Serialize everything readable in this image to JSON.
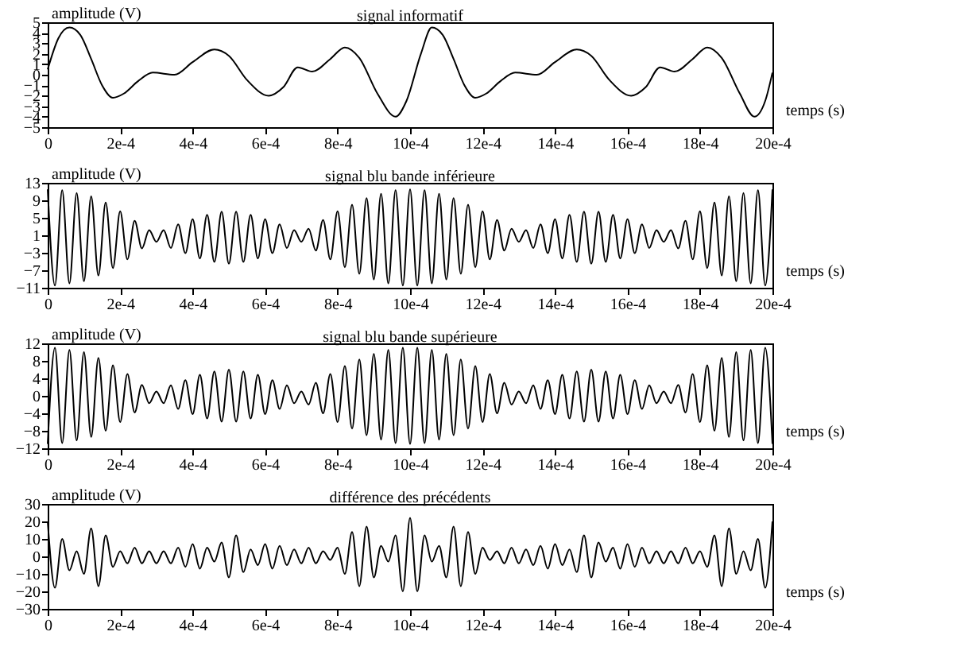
{
  "chart_data": [
    {
      "type": "line",
      "title": "signal informatif",
      "ylabel": "amplitude (V)",
      "xlabel": "temps (s)",
      "color": "#000000",
      "x": [
        0,
        3e-05,
        6e-05,
        9e-05,
        0.00012,
        0.00015,
        0.00018,
        0.00021,
        0.00025,
        0.00029,
        0.00035,
        0.0004,
        0.00046,
        0.0005,
        0.00055,
        0.00061,
        0.00065,
        0.00069,
        0.00073,
        0.00078,
        0.00082,
        0.00086,
        0.00091,
        0.00096,
        0.00099,
        0.00103,
        0.00106,
        0.00109,
        0.00112,
        0.00115,
        0.00118,
        0.00121,
        0.00125,
        0.00129,
        0.00135,
        0.0014,
        0.00146,
        0.0015,
        0.00155,
        0.00161,
        0.00165,
        0.00169,
        0.00173,
        0.00178,
        0.00182,
        0.00186,
        0.00191,
        0.00195,
        0.00198,
        0.002
      ],
      "values": [
        0.5,
        3.5,
        4.5,
        3.8,
        1.5,
        -1,
        -2.2,
        -1.8,
        -0.6,
        0.2,
        0,
        1.2,
        2.4,
        1.8,
        -0.5,
        -2,
        -1.2,
        0.7,
        0.3,
        1.5,
        2.6,
        1.6,
        -1.8,
        -4,
        -2.5,
        2,
        4.5,
        3.8,
        1.5,
        -1,
        -2.2,
        -1.8,
        -0.6,
        0.2,
        0,
        1.2,
        2.4,
        1.8,
        -0.5,
        -2,
        -1.2,
        0.7,
        0.3,
        1.5,
        2.6,
        1.6,
        -1.8,
        -4,
        -2.5,
        0.2
      ],
      "xlim": [
        0,
        0.002
      ],
      "xticks": [
        {
          "value": 0,
          "label": "0"
        },
        {
          "value": 0.0002,
          "label": "2e-4"
        },
        {
          "value": 0.0004,
          "label": "4e-4"
        },
        {
          "value": 0.0006,
          "label": "6e-4"
        },
        {
          "value": 0.0008,
          "label": "8e-4"
        },
        {
          "value": 0.001,
          "label": "10e-4"
        },
        {
          "value": 0.0012,
          "label": "12e-4"
        },
        {
          "value": 0.0014,
          "label": "14e-4"
        },
        {
          "value": 0.0016,
          "label": "16e-4"
        },
        {
          "value": 0.0018,
          "label": "18e-4"
        },
        {
          "value": 0.002,
          "label": "20e-4"
        }
      ],
      "ylim": [
        -5,
        5
      ],
      "yticks": [
        -5,
        -4,
        -3,
        -2,
        -1,
        0,
        1,
        2,
        3,
        4,
        5
      ]
    },
    {
      "type": "line",
      "title": "signal blu bande inférieure",
      "ylabel": "amplitude (V)",
      "xlabel": "temps (s)",
      "color": "#000000",
      "x": [
        0,
        2e-05,
        4e-05,
        6e-05,
        8e-05,
        0.0001,
        0.00012,
        0.00014,
        0.00016,
        0.00018,
        0.0002,
        0.00022,
        0.00024,
        0.00026,
        0.00028,
        0.0003,
        0.00032,
        0.00034,
        0.00036,
        0.00038,
        0.0004,
        0.00042,
        0.00044,
        0.00046,
        0.00048,
        0.0005,
        0.00052,
        0.00054,
        0.00056,
        0.00058,
        0.0006,
        0.00062,
        0.00064,
        0.00066,
        0.00068,
        0.0007,
        0.00072,
        0.00074,
        0.00076,
        0.00078,
        0.0008,
        0.00082,
        0.00084,
        0.00086,
        0.00088,
        0.0009,
        0.00092,
        0.00094,
        0.00096,
        0.00098,
        0.001,
        0.00102,
        0.00104,
        0.00106,
        0.00108,
        0.0011,
        0.00112,
        0.00114,
        0.00116,
        0.00118,
        0.0012,
        0.00122,
        0.00124,
        0.00126,
        0.00128,
        0.0013,
        0.00132,
        0.00134,
        0.00136,
        0.00138,
        0.0014,
        0.00142,
        0.00144,
        0.00146,
        0.00148,
        0.0015,
        0.00152,
        0.00154,
        0.00156,
        0.00158,
        0.0016,
        0.00162,
        0.00164,
        0.00166,
        0.00168,
        0.0017,
        0.00172,
        0.00174,
        0.00176,
        0.00178,
        0.0018,
        0.00182,
        0.00184,
        0.00186,
        0.00188,
        0.0019,
        0.00192,
        0.00194,
        0.00196,
        0.00198,
        0.002
      ],
      "values": [
        11.5,
        -10.5,
        11.3,
        -10,
        10.7,
        -9.5,
        9.9,
        -8.2,
        8.5,
        -6.5,
        6.5,
        -4.5,
        4.3,
        -2,
        2.2,
        -0.5,
        2.2,
        -1.9,
        3.5,
        -3.1,
        4.7,
        -4.3,
        5.7,
        -5.1,
        6.4,
        -5.5,
        6.4,
        -5.1,
        5.7,
        -4.3,
        4.7,
        -3.1,
        3.5,
        -1.9,
        2.2,
        -0.5,
        2.5,
        -2.5,
        4.5,
        -4.5,
        6.5,
        -6.3,
        8,
        -7.8,
        9.5,
        -9.1,
        10.5,
        -10,
        11.3,
        -10.5,
        11.5,
        -10.5,
        11.3,
        -10,
        10.5,
        -9.1,
        9.5,
        -7.8,
        8,
        -6.3,
        6.5,
        -4.5,
        4.5,
        -2.5,
        2.5,
        -0.5,
        2.2,
        -1.9,
        3.5,
        -3.1,
        4.7,
        -4.3,
        5.7,
        -5.1,
        6.4,
        -5.5,
        6.4,
        -5.1,
        5.7,
        -4.3,
        4.7,
        -3.1,
        3.5,
        -1.9,
        2.2,
        -0.5,
        2.2,
        -2,
        4.3,
        -4.5,
        6.5,
        -6.5,
        8.5,
        -8.2,
        9.9,
        -9.5,
        10.7,
        -10,
        11.3,
        -10.5,
        11.5
      ],
      "xlim": [
        0,
        0.002
      ],
      "xticks": [
        {
          "value": 0,
          "label": "0"
        },
        {
          "value": 0.0002,
          "label": "2e-4"
        },
        {
          "value": 0.0004,
          "label": "4e-4"
        },
        {
          "value": 0.0006,
          "label": "6e-4"
        },
        {
          "value": 0.0008,
          "label": "8e-4"
        },
        {
          "value": 0.001,
          "label": "10e-4"
        },
        {
          "value": 0.0012,
          "label": "12e-4"
        },
        {
          "value": 0.0014,
          "label": "14e-4"
        },
        {
          "value": 0.0016,
          "label": "16e-4"
        },
        {
          "value": 0.0018,
          "label": "18e-4"
        },
        {
          "value": 0.002,
          "label": "20e-4"
        }
      ],
      "ylim": [
        -11,
        13
      ],
      "yticks": [
        -11,
        -7,
        -3,
        1,
        5,
        9,
        13
      ]
    },
    {
      "type": "line",
      "title": "signal blu bande supérieure",
      "ylabel": "amplitude (V)",
      "xlabel": "temps (s)",
      "color": "#000000",
      "x": [
        0,
        2e-05,
        4e-05,
        6e-05,
        8e-05,
        0.0001,
        0.00012,
        0.00014,
        0.00016,
        0.00018,
        0.0002,
        0.00022,
        0.00024,
        0.00026,
        0.00028,
        0.0003,
        0.00032,
        0.00034,
        0.00036,
        0.00038,
        0.0004,
        0.00042,
        0.00044,
        0.00046,
        0.00048,
        0.0005,
        0.00052,
        0.00054,
        0.00056,
        0.00058,
        0.0006,
        0.00062,
        0.00064,
        0.00066,
        0.00068,
        0.0007,
        0.00072,
        0.00074,
        0.00076,
        0.00078,
        0.0008,
        0.00082,
        0.00084,
        0.00086,
        0.00088,
        0.0009,
        0.00092,
        0.00094,
        0.00096,
        0.00098,
        0.001,
        0.00102,
        0.00104,
        0.00106,
        0.00108,
        0.0011,
        0.00112,
        0.00114,
        0.00116,
        0.00118,
        0.0012,
        0.00122,
        0.00124,
        0.00126,
        0.00128,
        0.0013,
        0.00132,
        0.00134,
        0.00136,
        0.00138,
        0.0014,
        0.00142,
        0.00144,
        0.00146,
        0.00148,
        0.0015,
        0.00152,
        0.00154,
        0.00156,
        0.00158,
        0.0016,
        0.00162,
        0.00164,
        0.00166,
        0.00168,
        0.0017,
        0.00172,
        0.00174,
        0.00176,
        0.00178,
        0.0018,
        0.00182,
        0.00184,
        0.00186,
        0.00188,
        0.0019,
        0.00192,
        0.00194,
        0.00196,
        0.00198,
        0.002
      ],
      "values": [
        -11,
        11,
        -10.8,
        10.5,
        -10.2,
        10,
        -9.4,
        8.7,
        -8,
        7,
        -6,
        5,
        -3.8,
        2.5,
        -1.7,
        1,
        -1.7,
        2.4,
        -3,
        3.6,
        -4.2,
        4.8,
        -5.2,
        5.6,
        -5.9,
        6,
        -5.9,
        5.6,
        -5.2,
        4.8,
        -4.2,
        3.6,
        -3,
        2.4,
        -1.7,
        1,
        -2,
        3,
        -4,
        5,
        -6,
        6.8,
        -7.5,
        8.3,
        -9,
        9.6,
        -10,
        10.5,
        -10.8,
        11,
        -11,
        11,
        -10.8,
        10.5,
        -10,
        9.6,
        -9,
        8.3,
        -7.5,
        6.8,
        -6,
        5,
        -4,
        3,
        -2,
        1,
        -1.7,
        2.4,
        -3,
        3.6,
        -4.2,
        4.8,
        -5.2,
        5.6,
        -5.9,
        6,
        -5.9,
        5.6,
        -5.2,
        4.8,
        -4.2,
        3.6,
        -3,
        2.4,
        -1.7,
        1,
        -1.7,
        2.5,
        -3.8,
        5,
        -6,
        7,
        -8,
        8.7,
        -9.4,
        10,
        -10.2,
        10.5,
        -10.8,
        11,
        -11
      ],
      "xlim": [
        0,
        0.002
      ],
      "xticks": [
        {
          "value": 0,
          "label": "0"
        },
        {
          "value": 0.0002,
          "label": "2e-4"
        },
        {
          "value": 0.0004,
          "label": "4e-4"
        },
        {
          "value": 0.0006,
          "label": "6e-4"
        },
        {
          "value": 0.0008,
          "label": "8e-4"
        },
        {
          "value": 0.001,
          "label": "10e-4"
        },
        {
          "value": 0.0012,
          "label": "12e-4"
        },
        {
          "value": 0.0014,
          "label": "14e-4"
        },
        {
          "value": 0.0016,
          "label": "16e-4"
        },
        {
          "value": 0.0018,
          "label": "18e-4"
        },
        {
          "value": 0.002,
          "label": "20e-4"
        }
      ],
      "ylim": [
        -12,
        12
      ],
      "yticks": [
        -12,
        -8,
        -4,
        0,
        4,
        8,
        12
      ]
    },
    {
      "type": "line",
      "title": "différence des précédents",
      "ylabel": "amplitude (V)",
      "xlabel": "temps (s)",
      "color": "#000000",
      "x": [
        0,
        2e-05,
        4e-05,
        6e-05,
        8e-05,
        0.0001,
        0.00012,
        0.00014,
        0.00016,
        0.00018,
        0.0002,
        0.00022,
        0.00024,
        0.00026,
        0.00028,
        0.0003,
        0.00032,
        0.00034,
        0.00036,
        0.00038,
        0.0004,
        0.00042,
        0.00044,
        0.00046,
        0.00048,
        0.0005,
        0.00052,
        0.00054,
        0.00056,
        0.00058,
        0.0006,
        0.00062,
        0.00064,
        0.00066,
        0.00068,
        0.0007,
        0.00072,
        0.00074,
        0.00076,
        0.00078,
        0.0008,
        0.00082,
        0.00084,
        0.00086,
        0.00088,
        0.0009,
        0.00092,
        0.00094,
        0.00096,
        0.00098,
        0.001,
        0.00102,
        0.00104,
        0.00106,
        0.00108,
        0.0011,
        0.00112,
        0.00114,
        0.00116,
        0.00118,
        0.0012,
        0.00122,
        0.00124,
        0.00126,
        0.00128,
        0.0013,
        0.00132,
        0.00134,
        0.00136,
        0.00138,
        0.0014,
        0.00142,
        0.00144,
        0.00146,
        0.00148,
        0.0015,
        0.00152,
        0.00154,
        0.00156,
        0.00158,
        0.0016,
        0.00162,
        0.00164,
        0.00166,
        0.00168,
        0.0017,
        0.00172,
        0.00174,
        0.00176,
        0.00178,
        0.0018,
        0.00182,
        0.00184,
        0.00186,
        0.00188,
        0.0019,
        0.00192,
        0.00194,
        0.00196,
        0.00198,
        0.002
      ],
      "values": [
        20,
        -18,
        10,
        -8,
        3,
        -10,
        16,
        -17,
        12,
        -6,
        3,
        -4,
        5,
        -4,
        3,
        -4,
        3,
        -4,
        5,
        -6,
        7,
        -7,
        5,
        -3,
        8,
        -12,
        12,
        -9,
        4,
        -5,
        7,
        -7,
        6,
        -5,
        4,
        -4,
        5,
        -4,
        3,
        -2,
        5,
        -10,
        14,
        -17,
        17,
        -12,
        6,
        -3,
        12,
        -20,
        22,
        -20,
        12,
        -3,
        6,
        -12,
        17,
        -17,
        14,
        -10,
        5,
        -2,
        3,
        -4,
        5,
        -4,
        4,
        -5,
        6,
        -7,
        7,
        -5,
        4,
        -9,
        12,
        -12,
        8,
        -3,
        5,
        -7,
        7,
        -6,
        5,
        -4,
        3,
        -4,
        3,
        -4,
        5,
        -4,
        3,
        -6,
        12,
        -17,
        16,
        -10,
        3,
        -8,
        10,
        -18,
        20
      ],
      "xlim": [
        0,
        0.002
      ],
      "xticks": [
        {
          "value": 0,
          "label": "0"
        },
        {
          "value": 0.0002,
          "label": "2e-4"
        },
        {
          "value": 0.0004,
          "label": "4e-4"
        },
        {
          "value": 0.0006,
          "label": "6e-4"
        },
        {
          "value": 0.0008,
          "label": "8e-4"
        },
        {
          "value": 0.001,
          "label": "10e-4"
        },
        {
          "value": 0.0012,
          "label": "12e-4"
        },
        {
          "value": 0.0014,
          "label": "14e-4"
        },
        {
          "value": 0.0016,
          "label": "16e-4"
        },
        {
          "value": 0.0018,
          "label": "18e-4"
        },
        {
          "value": 0.002,
          "label": "20e-4"
        }
      ],
      "ylim": [
        -30,
        30
      ],
      "yticks": [
        -30,
        -20,
        -10,
        0,
        10,
        20,
        30
      ]
    }
  ]
}
